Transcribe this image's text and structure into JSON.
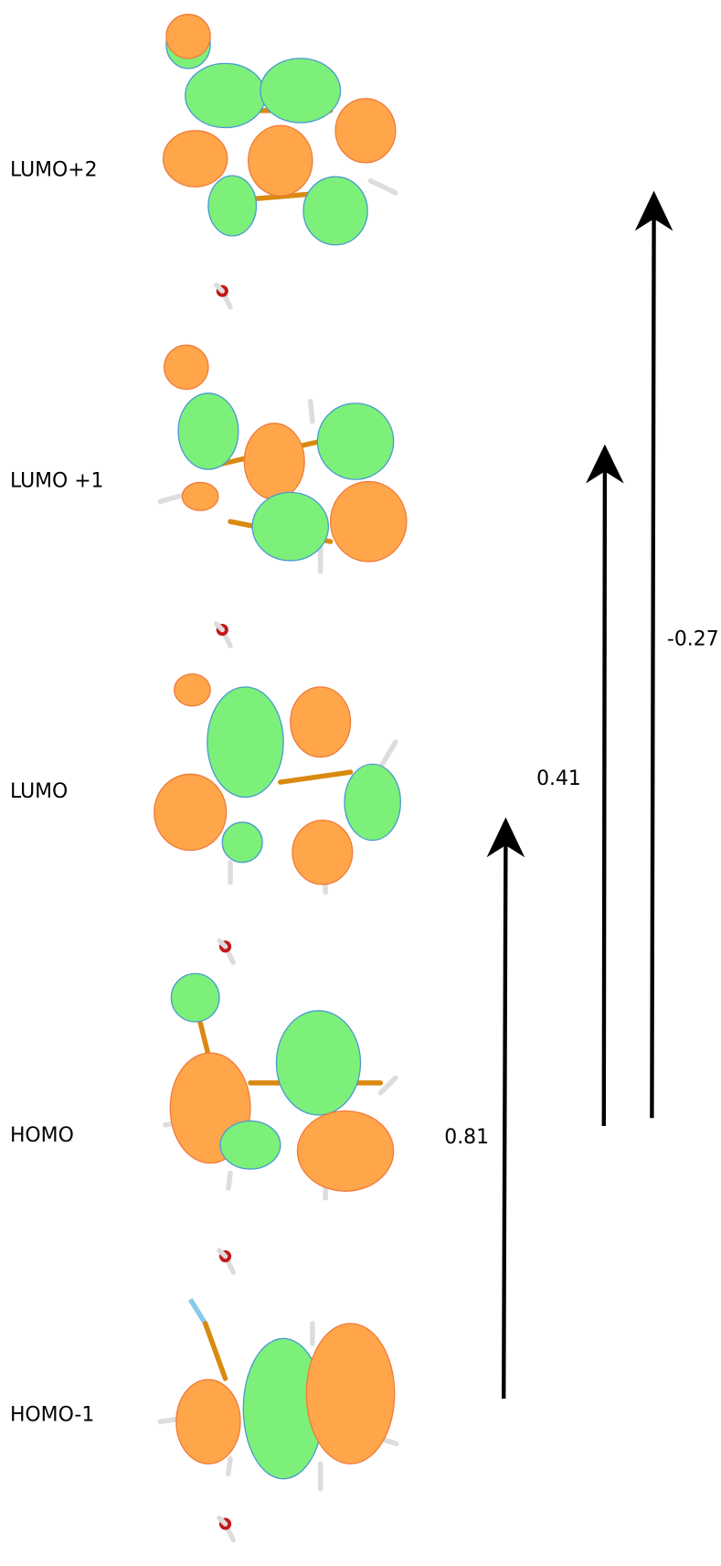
{
  "orbitals": [
    {
      "label": "LUMO+2"
    },
    {
      "label": "LUMO +1"
    },
    {
      "label": "LUMO"
    },
    {
      "label": "HOMO"
    },
    {
      "label": "HOMO-1"
    }
  ],
  "transitions": [
    {
      "label": "0.81"
    },
    {
      "label": "0.41"
    },
    {
      "label": "-0.27"
    }
  ]
}
